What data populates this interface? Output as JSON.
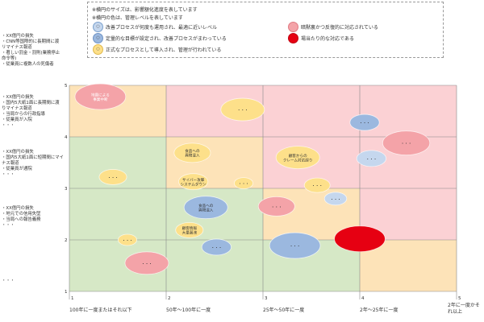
{
  "legend": {
    "note1": "※横円のサイズは、影響額化進度を表しています",
    "note2": "※横円の色は、管理レベルを表しています",
    "items": [
      {
        "label": "改善プロセスが何度も運用され、最適に近いレベル",
        "color": "#c5d7ee",
        "border": "#7aa0cc",
        "glyph": "○"
      },
      {
        "label": "定量的な目標が設定され、改善プロセスがまわっている",
        "color": "#9bb8df",
        "border": "#6f93c4",
        "glyph": "○"
      },
      {
        "label": "正式なプロセスとして導入され、管理が行われている",
        "color": "#fde08a",
        "border": "#e0b84a",
        "glyph": "○"
      },
      {
        "label": "暗黙裏かつ反復的に対応されている",
        "color": "#f4a3a8",
        "border": "#e07b83",
        "glyph": ""
      },
      {
        "label": "場当たり的な対応である",
        "color": "#e60012",
        "border": "#c00010",
        "glyph": ""
      }
    ]
  },
  "y_categories": [
    {
      "level": 5,
      "lines": [
        "・XX億円の損失",
        "・CNN等国際的に長期間に渡",
        "リマイナス報道",
        "・著しい罰金・罰則(業務停止",
        "命令等)",
        "・従業員に複数人の死傷者"
      ]
    },
    {
      "level": 4,
      "lines": [
        "・XX億円の損失",
        "・国内5大紙1面に長期間に渡",
        "りマイナス報道",
        "・当局からの行政指導",
        "・従業員が入院",
        "・・・"
      ]
    },
    {
      "level": 3,
      "lines": [
        "・XX億円の損失",
        "・国内5大紙1面に短期間にマイ",
        "ナス報道",
        "・従業員が通院",
        "・・・"
      ]
    },
    {
      "level": 2,
      "lines": [
        "・XX億円の損失",
        "・地元での信用失墜",
        "・当局への報告義務",
        "・・・"
      ]
    },
    {
      "level": 1,
      "lines": [
        "・・・"
      ]
    }
  ],
  "x_categories": [
    "100年に一度またはそれ以下",
    "50年～100年に一度",
    "25年～50年に一度",
    "2年～25年に一度",
    "2年に一度かそれ以上"
  ],
  "chart_data": {
    "type": "scatter",
    "title": "",
    "xlabel": "",
    "ylabel": "",
    "xlim": [
      1,
      5
    ],
    "ylim": [
      1,
      5
    ],
    "x_ticks": [
      1,
      2,
      3,
      4,
      5
    ],
    "y_ticks": [
      1,
      2,
      3,
      4,
      5
    ],
    "grid": true,
    "background_zones": [
      {
        "x": [
          1,
          2
        ],
        "y": [
          4,
          5
        ],
        "color": "#fde3b8"
      },
      {
        "x": [
          2,
          3
        ],
        "y": [
          4,
          5
        ],
        "color": "#fbd1d4"
      },
      {
        "x": [
          3,
          4
        ],
        "y": [
          4,
          5
        ],
        "color": "#fbd1d4"
      },
      {
        "x": [
          4,
          5
        ],
        "y": [
          4,
          5
        ],
        "color": "#fbd1d4"
      },
      {
        "x": [
          1,
          2
        ],
        "y": [
          3,
          4
        ],
        "color": "#d6e8c6"
      },
      {
        "x": [
          2,
          3
        ],
        "y": [
          3,
          4
        ],
        "color": "#fde3b8"
      },
      {
        "x": [
          3,
          4
        ],
        "y": [
          3,
          4
        ],
        "color": "#fbd1d4"
      },
      {
        "x": [
          4,
          5
        ],
        "y": [
          3,
          4
        ],
        "color": "#fbd1d4"
      },
      {
        "x": [
          1,
          2
        ],
        "y": [
          2,
          3
        ],
        "color": "#d6e8c6"
      },
      {
        "x": [
          2,
          3
        ],
        "y": [
          2,
          3
        ],
        "color": "#d6e8c6"
      },
      {
        "x": [
          3,
          4
        ],
        "y": [
          2,
          3
        ],
        "color": "#fde3b8"
      },
      {
        "x": [
          4,
          5
        ],
        "y": [
          2,
          3
        ],
        "color": "#fbd1d4"
      },
      {
        "x": [
          1,
          2
        ],
        "y": [
          1,
          2
        ],
        "color": "#d6e8c6"
      },
      {
        "x": [
          2,
          3
        ],
        "y": [
          1,
          2
        ],
        "color": "#d6e8c6"
      },
      {
        "x": [
          3,
          4
        ],
        "y": [
          1,
          2
        ],
        "color": "#d6e8c6"
      },
      {
        "x": [
          4,
          5
        ],
        "y": [
          1,
          2
        ],
        "color": "#fde3b8"
      }
    ],
    "points": [
      {
        "x": 1.32,
        "y": 4.78,
        "size": 1.2,
        "level": "暗黙裏",
        "color": "#f4a3a8",
        "label": "地震による\n事業中断",
        "label_color": "#ffffff"
      },
      {
        "x": 2.79,
        "y": 4.53,
        "size": 1.0,
        "level": "正式",
        "color": "#fde08a",
        "label": "・・・"
      },
      {
        "x": 4.05,
        "y": 4.28,
        "size": 0.6,
        "level": "定量的",
        "color": "#9bb8df",
        "label": "・・・"
      },
      {
        "x": 4.48,
        "y": 3.88,
        "size": 1.1,
        "level": "暗黙裏",
        "color": "#f4a3a8",
        "label": "・・・"
      },
      {
        "x": 4.12,
        "y": 3.58,
        "size": 0.6,
        "level": "改善",
        "color": "#c5d7ee",
        "label": "・・・"
      },
      {
        "x": 2.27,
        "y": 3.69,
        "size": 0.8,
        "level": "正式",
        "color": "#fde08a",
        "label": "食品への\n異物混入"
      },
      {
        "x": 3.36,
        "y": 3.6,
        "size": 1.0,
        "level": "正式",
        "color": "#fde08a",
        "label": "顧客からの\nクレーム対応誤り"
      },
      {
        "x": 1.45,
        "y": 3.22,
        "size": 0.55,
        "level": "正式",
        "color": "#fde08a",
        "label": "・・・"
      },
      {
        "x": 2.28,
        "y": 3.13,
        "size": 0.6,
        "level": "正式",
        "color": "#fde08a",
        "label": "サイバー攻撃\nシステムダウン"
      },
      {
        "x": 2.8,
        "y": 3.1,
        "size": 0.3,
        "level": "正式",
        "color": "#fde08a",
        "label": "・・・"
      },
      {
        "x": 3.56,
        "y": 3.06,
        "size": 0.5,
        "level": "正式",
        "color": "#fde08a",
        "label": "・・・"
      },
      {
        "x": 3.75,
        "y": 2.8,
        "size": 0.4,
        "level": "改善",
        "color": "#c5d7ee",
        "label": "・・・"
      },
      {
        "x": 2.41,
        "y": 2.63,
        "size": 1.0,
        "level": "定量的",
        "color": "#9bb8df",
        "label": "食品への\n異物混入"
      },
      {
        "x": 3.14,
        "y": 2.65,
        "size": 0.8,
        "level": "暗黙裏",
        "color": "#f4a3a8",
        "label": "・・・"
      },
      {
        "x": 2.24,
        "y": 2.19,
        "size": 0.55,
        "level": "正式",
        "color": "#fde08a",
        "label": "顧客情報\n大量漏洩"
      },
      {
        "x": 4.0,
        "y": 2.02,
        "size": 1.2,
        "level": "場当たり",
        "color": "#e60012",
        "label": ""
      },
      {
        "x": 3.33,
        "y": 1.89,
        "size": 1.2,
        "level": "定量的",
        "color": "#9bb8df",
        "label": "・・・"
      },
      {
        "x": 1.6,
        "y": 2.0,
        "size": 0.3,
        "level": "正式",
        "color": "#fde08a",
        "label": "・・・"
      },
      {
        "x": 2.52,
        "y": 1.86,
        "size": 0.6,
        "level": "定量的",
        "color": "#9bb8df",
        "label": "・・・"
      },
      {
        "x": 1.8,
        "y": 1.55,
        "size": 1.0,
        "level": "暗黙裏",
        "color": "#f4a3a8",
        "label": "・・・"
      }
    ]
  }
}
